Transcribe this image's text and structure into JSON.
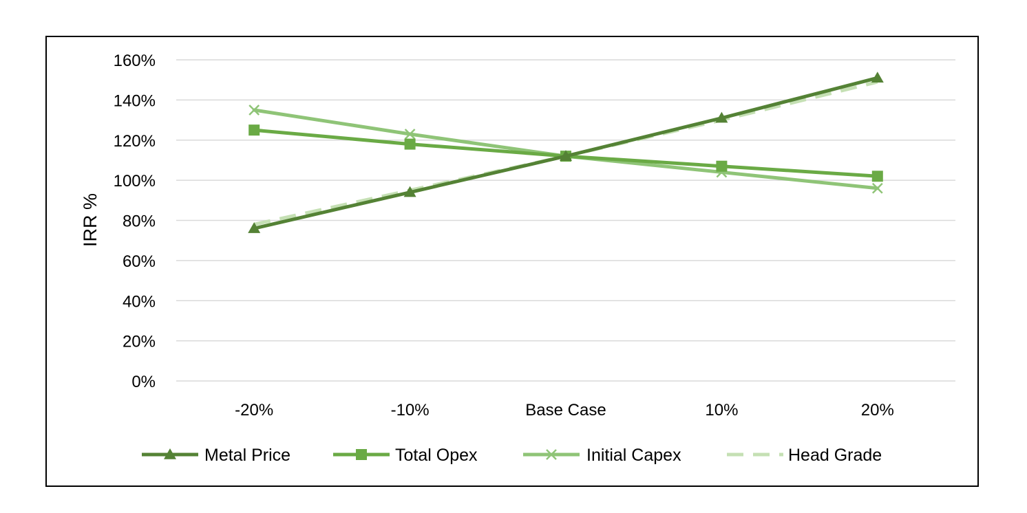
{
  "chart_data": {
    "type": "line",
    "title": "",
    "xlabel": "",
    "ylabel": "IRR %",
    "categories": [
      "-20%",
      "-10%",
      "Base Case",
      "10%",
      "20%"
    ],
    "ylim": [
      0,
      160
    ],
    "yticks": [
      0,
      20,
      40,
      60,
      80,
      100,
      120,
      140,
      160
    ],
    "ytick_suffix": "%",
    "grid": true,
    "legend_position": "bottom",
    "series": [
      {
        "name": "Metal Price",
        "values": [
          76,
          94,
          112,
          131,
          151
        ],
        "color": "#548235",
        "marker": "triangle",
        "dash": "solid"
      },
      {
        "name": "Total Opex",
        "values": [
          125,
          118,
          112,
          107,
          102
        ],
        "color": "#6aaa45",
        "marker": "square",
        "dash": "solid"
      },
      {
        "name": "Initial Capex",
        "values": [
          135,
          123,
          112,
          104,
          96
        ],
        "color": "#8fc477",
        "marker": "x",
        "dash": "solid"
      },
      {
        "name": "Head Grade",
        "values": [
          78,
          95,
          112,
          130,
          149
        ],
        "color": "#c5e0b4",
        "marker": "none",
        "dash": "dashed"
      }
    ]
  }
}
